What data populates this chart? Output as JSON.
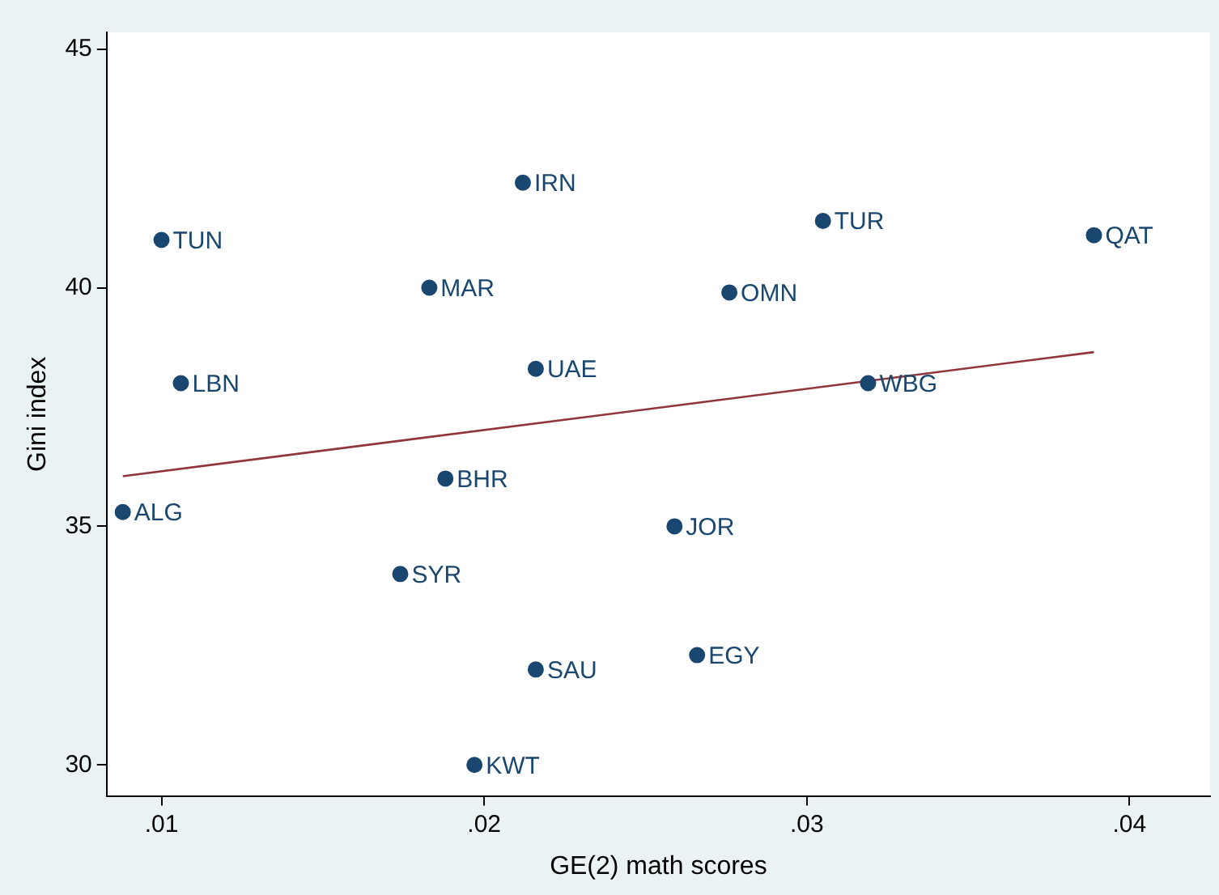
{
  "chart_data": {
    "type": "scatter",
    "xlabel": "GE(2) math scores",
    "ylabel": "Gini index",
    "xlim": [
      0.0083,
      0.0425
    ],
    "ylim": [
      29.35,
      45.35
    ],
    "xticks": [
      {
        "value": 0.01,
        "label": ".01"
      },
      {
        "value": 0.02,
        "label": ".02"
      },
      {
        "value": 0.03,
        "label": ".03"
      },
      {
        "value": 0.04,
        "label": ".04"
      }
    ],
    "yticks": [
      30,
      35,
      40,
      45
    ],
    "grid": false,
    "legend": false,
    "marker": "circle",
    "series": [
      {
        "color": "#1a476f",
        "x": [
          0.01,
          0.0106,
          0.0088,
          0.0183,
          0.0212,
          0.0216,
          0.0188,
          0.0174,
          0.0216,
          0.0197,
          0.0259,
          0.0266,
          0.0276,
          0.0305,
          0.0319,
          0.0389
        ],
        "values": [
          41,
          38,
          35.3,
          40,
          42.2,
          38.3,
          36,
          34,
          32,
          30,
          35,
          32.3,
          39.9,
          41.4,
          38,
          41.1
        ]
      },
      {
        "type": "line",
        "color": "#90353b",
        "x": [
          0.0088,
          0.0389
        ],
        "values": [
          36.05,
          38.65
        ],
        "marker": "none"
      }
    ],
    "annotations": [
      {
        "text": "TUN",
        "x": 0.01,
        "y": 41
      },
      {
        "text": "LBN",
        "x": 0.0106,
        "y": 38
      },
      {
        "text": "ALG",
        "x": 0.0088,
        "y": 35.3
      },
      {
        "text": "MAR",
        "x": 0.0183,
        "y": 40
      },
      {
        "text": "IRN",
        "x": 0.0212,
        "y": 42.2
      },
      {
        "text": "UAE",
        "x": 0.0216,
        "y": 38.3
      },
      {
        "text": "BHR",
        "x": 0.0188,
        "y": 36
      },
      {
        "text": "SYR",
        "x": 0.0174,
        "y": 34
      },
      {
        "text": "SAU",
        "x": 0.0216,
        "y": 32
      },
      {
        "text": "KWT",
        "x": 0.0197,
        "y": 30
      },
      {
        "text": "JOR",
        "x": 0.0259,
        "y": 35
      },
      {
        "text": "EGY",
        "x": 0.0266,
        "y": 32.3
      },
      {
        "text": "OMN",
        "x": 0.0276,
        "y": 39.9
      },
      {
        "text": "TUR",
        "x": 0.0305,
        "y": 41.4
      },
      {
        "text": "WBG",
        "x": 0.0319,
        "y": 38
      },
      {
        "text": "QAT",
        "x": 0.0389,
        "y": 41.1
      }
    ]
  }
}
